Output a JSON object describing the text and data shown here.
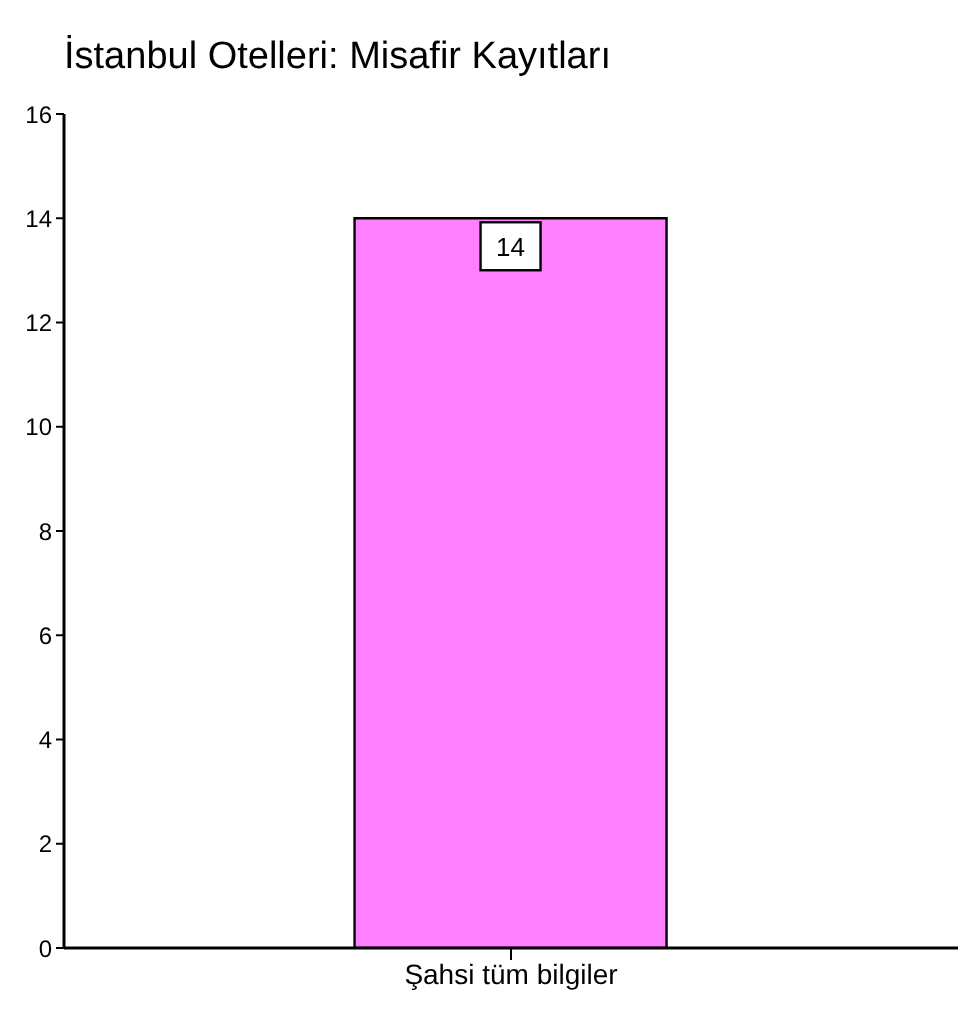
{
  "chart_data": {
    "type": "bar",
    "title": "İstanbul Otelleri: Misafir Kayıtları",
    "categories": [
      "Şahsi tüm bilgiler"
    ],
    "values": [
      14
    ],
    "color": "#ff80ff",
    "ylim": [
      0,
      16
    ],
    "yticks": [
      0,
      2,
      4,
      6,
      8,
      10,
      12,
      14,
      16
    ],
    "grid": false,
    "data_labels": true
  }
}
